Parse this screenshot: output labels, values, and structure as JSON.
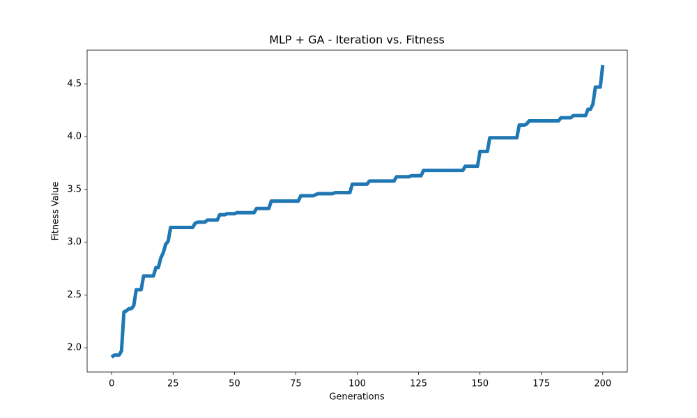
{
  "chart_data": {
    "type": "line",
    "title": "MLP + GA - Iteration vs. Fitness",
    "x_label": "Generations",
    "y_label": "Fitness Value",
    "x": [
      0,
      1,
      3,
      4,
      5,
      6,
      7,
      8,
      9,
      10,
      12,
      13,
      17,
      18,
      19,
      20,
      21,
      22,
      23,
      24,
      33,
      34,
      35,
      38,
      39,
      43,
      44,
      46,
      47,
      50,
      51,
      58,
      59,
      64,
      65,
      76,
      77,
      82,
      83,
      84,
      90,
      91,
      97,
      98,
      104,
      105,
      115,
      116,
      121,
      122,
      126,
      127,
      143,
      144,
      149,
      150,
      153,
      154,
      165,
      166,
      168,
      169,
      170,
      182,
      183,
      187,
      188,
      193,
      194,
      195,
      196,
      197,
      199,
      200
    ],
    "values": [
      1.91,
      1.93,
      1.93,
      1.97,
      2.34,
      2.35,
      2.37,
      2.37,
      2.4,
      2.55,
      2.55,
      2.68,
      2.68,
      2.76,
      2.76,
      2.85,
      2.9,
      2.98,
      3.01,
      3.14,
      3.14,
      3.18,
      3.19,
      3.19,
      3.21,
      3.21,
      3.26,
      3.26,
      3.27,
      3.27,
      3.28,
      3.28,
      3.32,
      3.32,
      3.39,
      3.39,
      3.44,
      3.44,
      3.45,
      3.46,
      3.46,
      3.47,
      3.47,
      3.55,
      3.55,
      3.58,
      3.58,
      3.62,
      3.62,
      3.63,
      3.63,
      3.68,
      3.68,
      3.72,
      3.72,
      3.86,
      3.86,
      3.99,
      3.99,
      4.11,
      4.11,
      4.12,
      4.15,
      4.15,
      4.18,
      4.18,
      4.2,
      4.2,
      4.26,
      4.26,
      4.31,
      4.47,
      4.47,
      4.68
    ],
    "color": "#1f77b4",
    "xlim": [
      -10,
      210
    ],
    "xticks": [
      0,
      25,
      50,
      75,
      100,
      125,
      150,
      175,
      200
    ],
    "ylim": [
      1.77,
      4.82
    ],
    "yticks": [
      {
        "value": 2.0,
        "label": "2.0"
      },
      {
        "value": 2.5,
        "label": "2.5"
      },
      {
        "value": 3.0,
        "label": "3.0"
      },
      {
        "value": 3.5,
        "label": "3.5"
      },
      {
        "value": 4.0,
        "label": "4.0"
      },
      {
        "value": 4.5,
        "label": "4.5"
      }
    ]
  }
}
